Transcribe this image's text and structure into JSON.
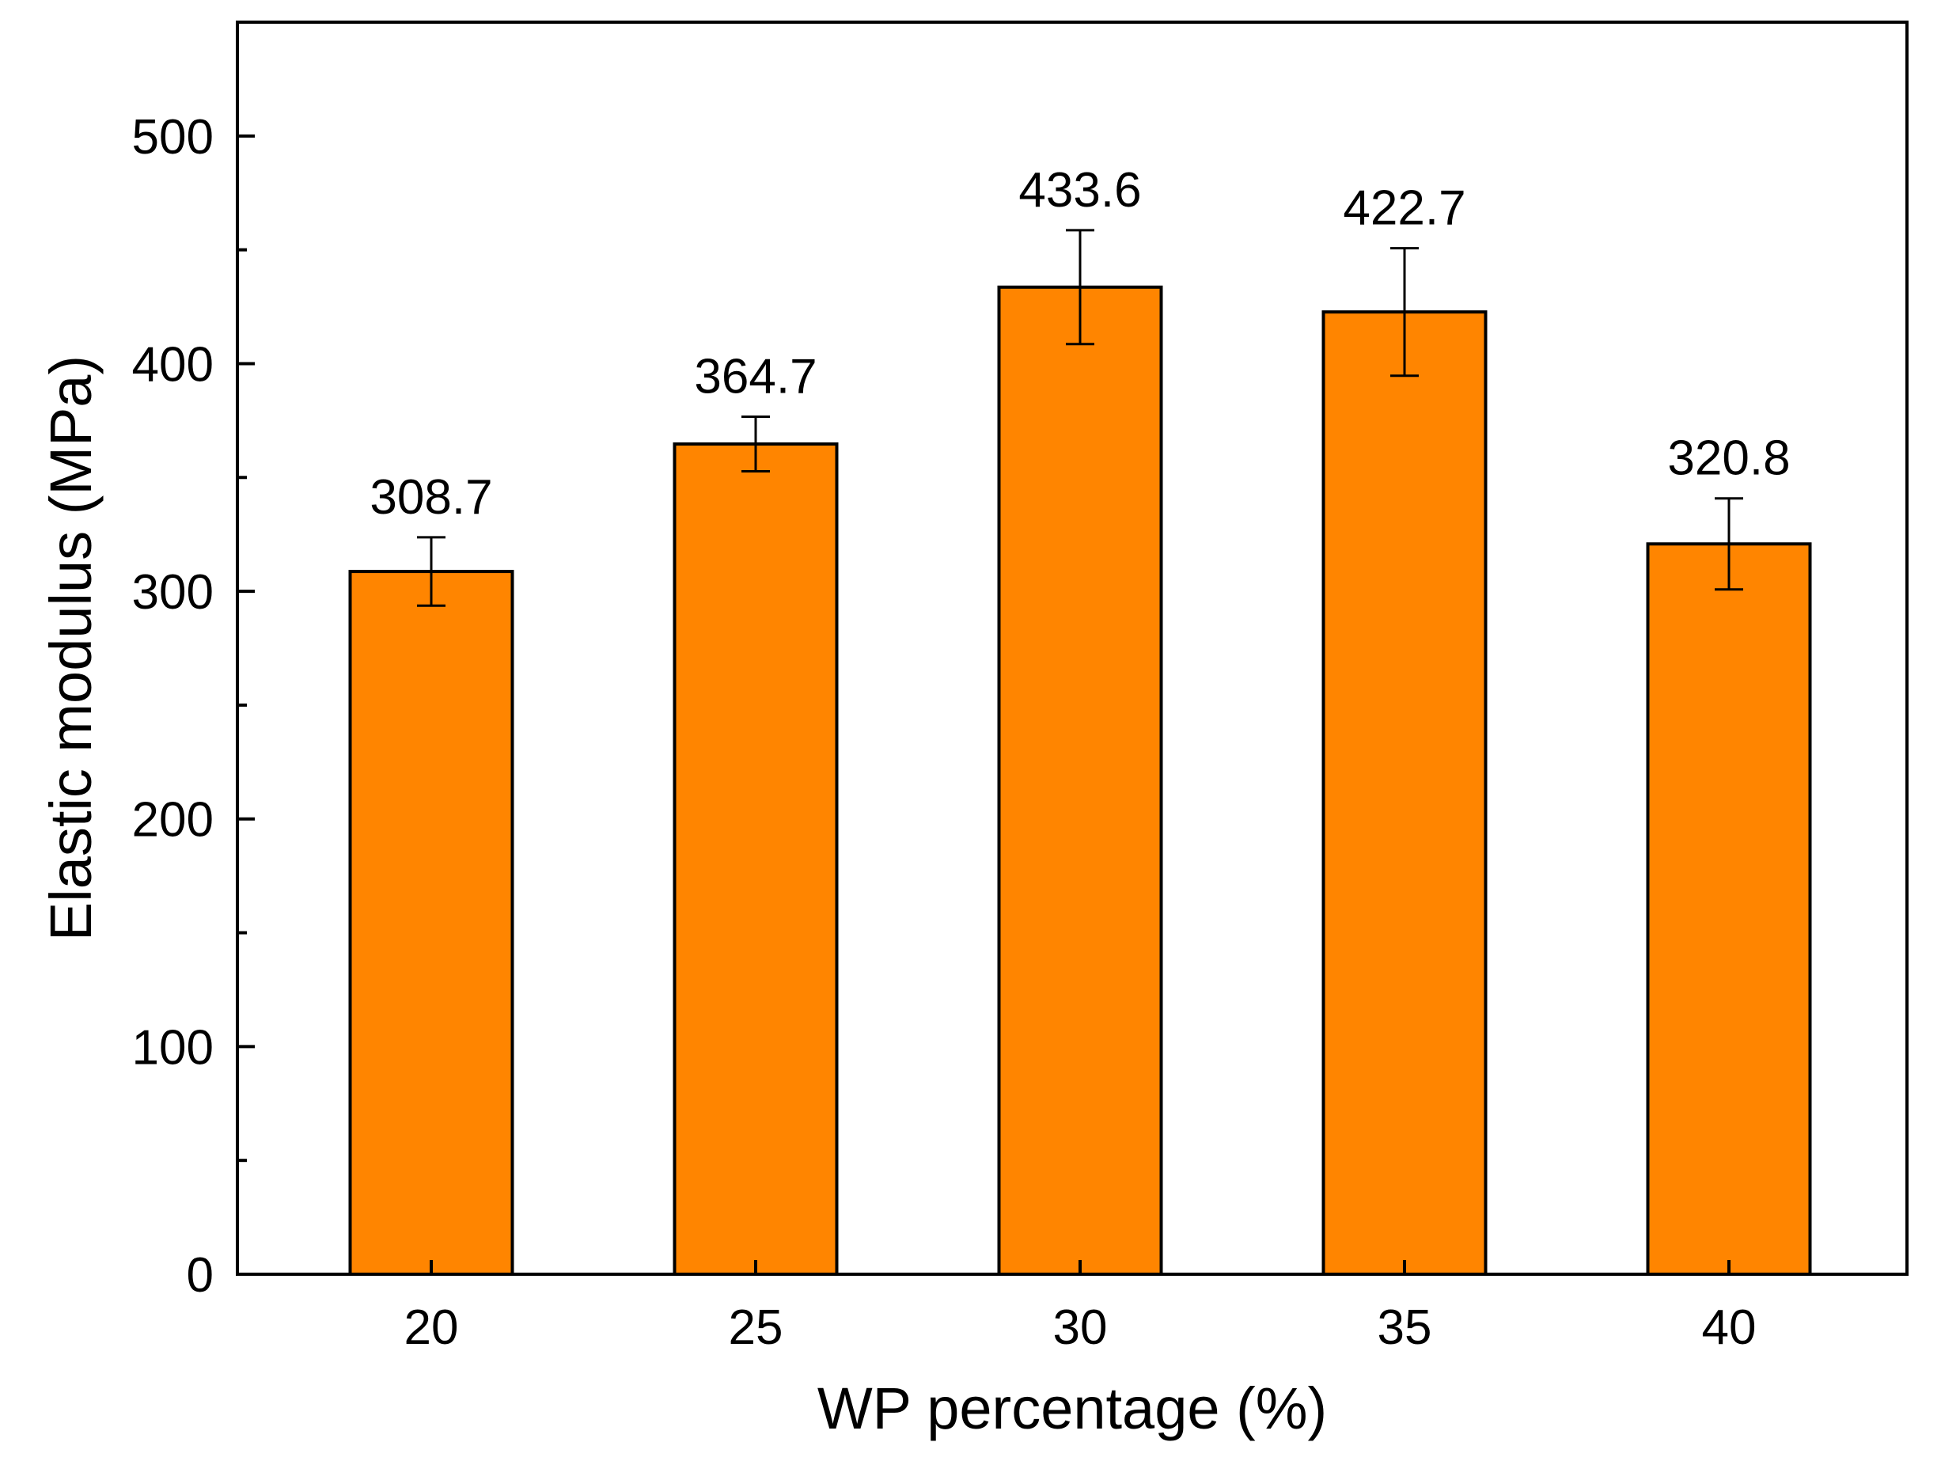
{
  "chart_data": {
    "type": "bar",
    "title": "",
    "xlabel": "WP percentage (%)",
    "ylabel": "Elastic modulus (MPa)",
    "categories": [
      "20",
      "25",
      "30",
      "35",
      "40"
    ],
    "values": [
      308.7,
      364.7,
      433.6,
      422.7,
      320.8
    ],
    "value_labels": [
      "308.7",
      "364.7",
      "433.6",
      "422.7",
      "320.8"
    ],
    "errors": [
      15,
      12,
      25,
      28,
      20
    ],
    "ylim": [
      0,
      550
    ],
    "yticks": [
      0,
      100,
      200,
      300,
      400,
      500
    ],
    "yticks_minor": [
      50,
      150,
      250,
      350,
      450
    ],
    "grid": false,
    "bar_color": "#FF8500",
    "edge_color": "#000000"
  }
}
